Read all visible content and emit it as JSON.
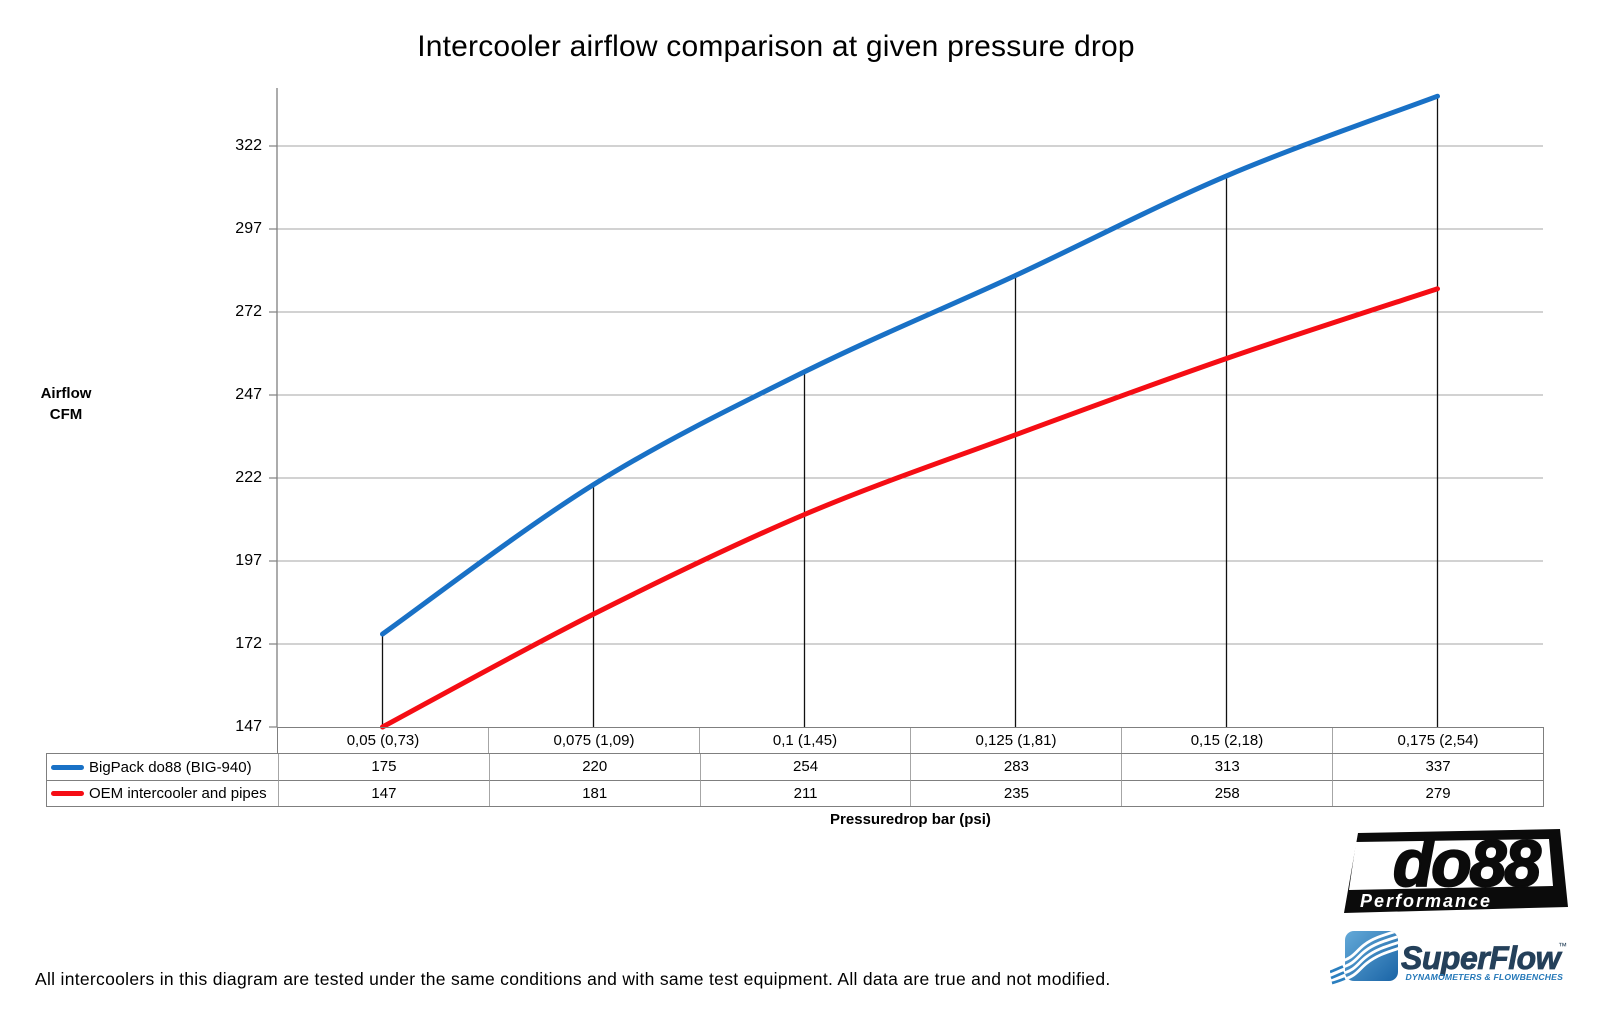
{
  "chart_data": {
    "type": "line",
    "title": "Intercooler airflow comparison at given pressure drop",
    "xlabel": "Pressuredrop bar (psi)",
    "ylabel": "Airflow CFM",
    "ylabel_lines": [
      "Airflow",
      "CFM"
    ],
    "categories": [
      "0,05 (0,73)",
      "0,075 (1,09)",
      "0,1 (1,45)",
      "0,125 (1,81)",
      "0,15 (2,18)",
      "0,175 (2,54)"
    ],
    "series": [
      {
        "name": "BigPack do88 (BIG-940)",
        "color": "#1971C6",
        "values": [
          175,
          220,
          254,
          283,
          313,
          337
        ]
      },
      {
        "name": "OEM intercooler and pipes",
        "color": "#F50D14",
        "values": [
          147,
          181,
          211,
          235,
          258,
          279
        ]
      }
    ],
    "yticks": [
      147,
      172,
      197,
      222,
      247,
      272,
      297,
      322
    ],
    "ylim": [
      147,
      340
    ],
    "grid": true,
    "droplines": true,
    "legend_position": "table-left"
  },
  "footer": {
    "disclaimer": "All intercoolers in this diagram are tested under the same conditions and with same test equipment. All data are true and not modified."
  },
  "logos": {
    "do88": {
      "wordmark": "do88",
      "subtitle": "Performance"
    },
    "superflow": {
      "wordmark": "SuperFlow",
      "trademark": "™",
      "subtitle": "DYNAMOMETERS & FLOWBENCHES"
    }
  },
  "colors": {
    "grid": "#A6A6A6",
    "axis": "#808080",
    "dropline": "#111111",
    "table_border_outer": "#7F7F7F",
    "table_border_inner": "#A6A6A6",
    "background": "#FFFFFF",
    "superflow_navy": "#24405A",
    "superflow_blue": "#2277B8"
  }
}
